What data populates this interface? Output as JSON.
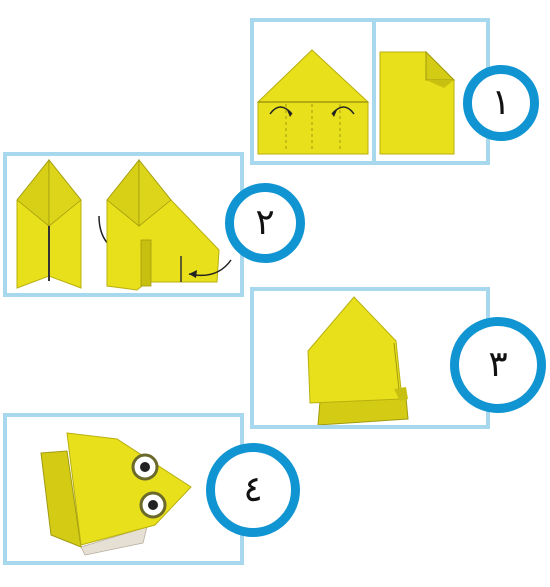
{
  "colors": {
    "panel_border": "#a8d8ee",
    "badge_ring": "#1195d2",
    "paper_yellow": "#e8e01a",
    "paper_shade": "#c8c010",
    "eye_outline": "#6b6a2a"
  },
  "steps": [
    {
      "number": "١"
    },
    {
      "number": "٢"
    },
    {
      "number": "٣"
    },
    {
      "number": "٤"
    }
  ]
}
